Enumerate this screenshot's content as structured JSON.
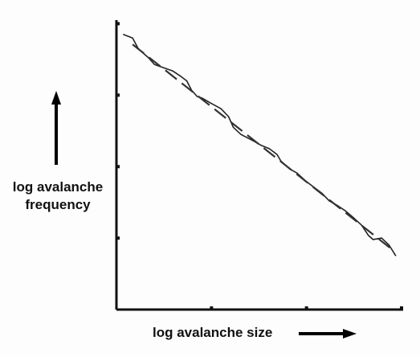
{
  "chart_data": {
    "type": "line",
    "xlabel": "log avalanche size",
    "ylabel": "log avalanche frequency",
    "xlim": [
      0,
      3
    ],
    "ylim": [
      0,
      4.05
    ],
    "xticks": [
      1,
      2,
      3
    ],
    "yticks": [
      1,
      2,
      3,
      4
    ],
    "series": [
      {
        "color": "#222",
        "style": "solid",
        "x": [
          0.07,
          0.17,
          0.23,
          0.34,
          0.4,
          0.46,
          0.59,
          0.68,
          0.74,
          0.79,
          0.85,
          0.9,
          0.99,
          1.1,
          1.18,
          1.23,
          1.31,
          1.44,
          1.52,
          1.61,
          1.69,
          1.73,
          1.82,
          1.9,
          1.99,
          2.07,
          2.16,
          2.24,
          2.32,
          2.41,
          2.49,
          2.58,
          2.65,
          2.7,
          2.79,
          2.87,
          2.94
        ],
        "values": [
          3.85,
          3.8,
          3.65,
          3.52,
          3.43,
          3.4,
          3.34,
          3.26,
          3.2,
          3.07,
          2.98,
          2.96,
          2.89,
          2.81,
          2.7,
          2.55,
          2.45,
          2.36,
          2.3,
          2.25,
          2.17,
          2.08,
          1.97,
          1.91,
          1.8,
          1.72,
          1.63,
          1.52,
          1.46,
          1.38,
          1.29,
          1.18,
          1.04,
          0.98,
          1.0,
          0.9,
          0.75
        ]
      },
      {
        "color": "#333",
        "style": "dashed",
        "x": [
          0.17,
          2.92
        ],
        "values": [
          3.71,
          0.82
        ]
      }
    ]
  }
}
